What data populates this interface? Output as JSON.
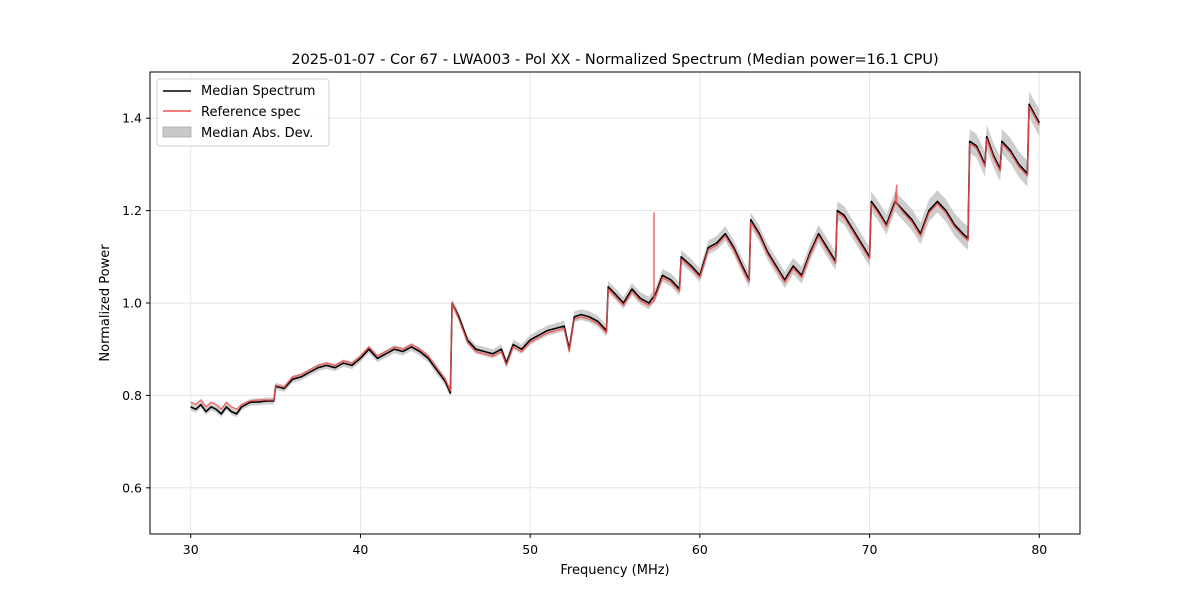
{
  "chart_data": {
    "type": "line",
    "title": "2025-01-07 - Cor 67 - LWA003 - Pol XX - Normalized Spectrum (Median power=16.1 CPU)",
    "xlabel": "Frequency (MHz)",
    "ylabel": "Normalized Power",
    "xlim": [
      27.6,
      82.4
    ],
    "ylim": [
      0.5,
      1.5
    ],
    "xticks": [
      30,
      40,
      50,
      60,
      70,
      80
    ],
    "yticks": [
      0.6,
      0.8,
      1.0,
      1.2,
      1.4
    ],
    "xtick_labels": [
      "30",
      "40",
      "50",
      "60",
      "70",
      "80"
    ],
    "ytick_labels": [
      "0.6",
      "0.8",
      "1.0",
      "1.2",
      "1.4"
    ],
    "grid": true,
    "legend_position": "top-left",
    "legend": [
      {
        "label": "Median Spectrum",
        "kind": "line",
        "color": "#000000"
      },
      {
        "label": "Reference spec",
        "kind": "line",
        "color": "#f05050"
      },
      {
        "label": "Median Abs. Dev.",
        "kind": "patch",
        "color": "#c8c8c8"
      }
    ],
    "mad_band_width": 0.012,
    "series": [
      {
        "name": "Median Spectrum",
        "color": "#000000",
        "x": [
          30.0,
          30.3,
          30.6,
          30.9,
          31.2,
          31.5,
          31.8,
          32.1,
          32.4,
          32.7,
          33.0,
          33.5,
          34.0,
          34.5,
          34.9,
          35.0,
          35.5,
          36.0,
          36.5,
          37.0,
          37.5,
          38.0,
          38.5,
          39.0,
          39.5,
          40.0,
          40.5,
          41.0,
          41.5,
          42.0,
          42.5,
          43.0,
          43.5,
          44.0,
          44.5,
          45.0,
          45.3,
          45.4,
          45.8,
          46.3,
          46.8,
          47.3,
          47.8,
          48.3,
          48.6,
          49.0,
          49.5,
          50.0,
          50.5,
          51.0,
          51.5,
          52.0,
          52.3,
          52.6,
          53.0,
          53.5,
          54.0,
          54.5,
          54.6,
          55.0,
          55.5,
          56.0,
          56.5,
          57.0,
          57.4,
          57.8,
          58.3,
          58.8,
          58.9,
          59.5,
          60.0,
          60.5,
          61.0,
          61.5,
          62.0,
          62.5,
          62.9,
          63.0,
          63.5,
          64.0,
          64.5,
          65.0,
          65.5,
          66.0,
          66.5,
          67.0,
          67.5,
          68.0,
          68.1,
          68.5,
          69.0,
          69.5,
          70.0,
          70.1,
          70.5,
          71.0,
          71.5,
          72.0,
          72.5,
          73.0,
          73.5,
          74.0,
          74.5,
          75.0,
          75.5,
          75.8,
          75.9,
          76.3,
          76.8,
          76.9,
          77.3,
          77.7,
          77.8,
          78.3,
          78.8,
          79.3,
          79.4,
          79.7,
          80.0
        ],
        "y": [
          0.775,
          0.77,
          0.78,
          0.765,
          0.775,
          0.77,
          0.76,
          0.775,
          0.765,
          0.76,
          0.775,
          0.785,
          0.786,
          0.788,
          0.788,
          0.82,
          0.815,
          0.835,
          0.84,
          0.85,
          0.86,
          0.865,
          0.86,
          0.87,
          0.865,
          0.88,
          0.9,
          0.88,
          0.89,
          0.9,
          0.895,
          0.905,
          0.895,
          0.88,
          0.855,
          0.83,
          0.805,
          1.0,
          0.97,
          0.92,
          0.9,
          0.895,
          0.89,
          0.9,
          0.87,
          0.91,
          0.9,
          0.92,
          0.93,
          0.94,
          0.945,
          0.95,
          0.9,
          0.97,
          0.975,
          0.97,
          0.96,
          0.94,
          1.035,
          1.02,
          1.0,
          1.03,
          1.01,
          1.0,
          1.02,
          1.06,
          1.05,
          1.03,
          1.1,
          1.08,
          1.06,
          1.12,
          1.13,
          1.15,
          1.12,
          1.08,
          1.05,
          1.18,
          1.15,
          1.11,
          1.08,
          1.05,
          1.08,
          1.06,
          1.11,
          1.15,
          1.12,
          1.09,
          1.2,
          1.19,
          1.16,
          1.13,
          1.1,
          1.22,
          1.2,
          1.17,
          1.22,
          1.2,
          1.18,
          1.15,
          1.2,
          1.22,
          1.2,
          1.17,
          1.15,
          1.14,
          1.35,
          1.34,
          1.3,
          1.36,
          1.32,
          1.29,
          1.35,
          1.33,
          1.3,
          1.28,
          1.43,
          1.41,
          1.39
        ]
      },
      {
        "name": "Reference spec",
        "color": "#f05050",
        "x": [
          30.0,
          30.3,
          30.6,
          30.9,
          31.2,
          31.5,
          31.8,
          32.1,
          32.4,
          32.7,
          33.0,
          33.5,
          34.0,
          34.5,
          34.9,
          35.0,
          35.5,
          36.0,
          36.5,
          37.0,
          37.5,
          38.0,
          38.5,
          39.0,
          39.5,
          40.0,
          40.5,
          41.0,
          41.5,
          42.0,
          42.5,
          43.0,
          43.5,
          44.0,
          44.5,
          45.0,
          45.3,
          45.4,
          45.8,
          46.3,
          46.8,
          47.3,
          47.8,
          48.3,
          48.6,
          49.0,
          49.5,
          50.0,
          50.5,
          51.0,
          51.5,
          52.0,
          52.3,
          52.6,
          53.0,
          53.5,
          54.0,
          54.5,
          54.6,
          55.0,
          55.5,
          56.0,
          56.5,
          57.0,
          57.3,
          57.3,
          57.3,
          57.4,
          57.8,
          58.3,
          58.8,
          58.9,
          59.5,
          60.0,
          60.5,
          61.0,
          61.5,
          62.0,
          62.5,
          62.9,
          63.0,
          63.5,
          64.0,
          64.5,
          65.0,
          65.5,
          66.0,
          66.5,
          67.0,
          67.5,
          68.0,
          68.1,
          68.5,
          69.0,
          69.5,
          70.0,
          70.1,
          70.5,
          71.0,
          71.5,
          71.6,
          71.6,
          72.0,
          72.5,
          73.0,
          73.5,
          74.0,
          74.5,
          75.0,
          75.5,
          75.8,
          75.9,
          76.3,
          76.8,
          76.9,
          77.3,
          77.7,
          77.8,
          78.3,
          78.8,
          79.3,
          79.4,
          79.7,
          80.0
        ],
        "y": [
          0.785,
          0.78,
          0.79,
          0.775,
          0.785,
          0.78,
          0.77,
          0.785,
          0.775,
          0.77,
          0.78,
          0.788,
          0.79,
          0.79,
          0.79,
          0.822,
          0.818,
          0.84,
          0.845,
          0.855,
          0.865,
          0.87,
          0.865,
          0.875,
          0.87,
          0.885,
          0.905,
          0.885,
          0.895,
          0.905,
          0.9,
          0.91,
          0.9,
          0.885,
          0.86,
          0.835,
          0.81,
          1.0,
          0.965,
          0.915,
          0.895,
          0.89,
          0.885,
          0.895,
          0.865,
          0.905,
          0.895,
          0.915,
          0.925,
          0.935,
          0.94,
          0.945,
          0.895,
          0.965,
          0.97,
          0.965,
          0.955,
          0.935,
          1.03,
          1.015,
          0.995,
          1.025,
          1.005,
          0.995,
          1.005,
          1.195,
          1.005,
          1.015,
          1.055,
          1.045,
          1.025,
          1.095,
          1.075,
          1.055,
          1.115,
          1.125,
          1.145,
          1.115,
          1.075,
          1.045,
          1.175,
          1.145,
          1.105,
          1.075,
          1.045,
          1.075,
          1.055,
          1.105,
          1.145,
          1.115,
          1.085,
          1.195,
          1.185,
          1.155,
          1.125,
          1.095,
          1.215,
          1.195,
          1.165,
          1.215,
          1.255,
          1.215,
          1.195,
          1.175,
          1.145,
          1.195,
          1.215,
          1.195,
          1.165,
          1.145,
          1.135,
          1.345,
          1.335,
          1.295,
          1.355,
          1.315,
          1.285,
          1.345,
          1.325,
          1.295,
          1.275,
          1.425,
          1.405,
          1.385
        ]
      }
    ]
  }
}
